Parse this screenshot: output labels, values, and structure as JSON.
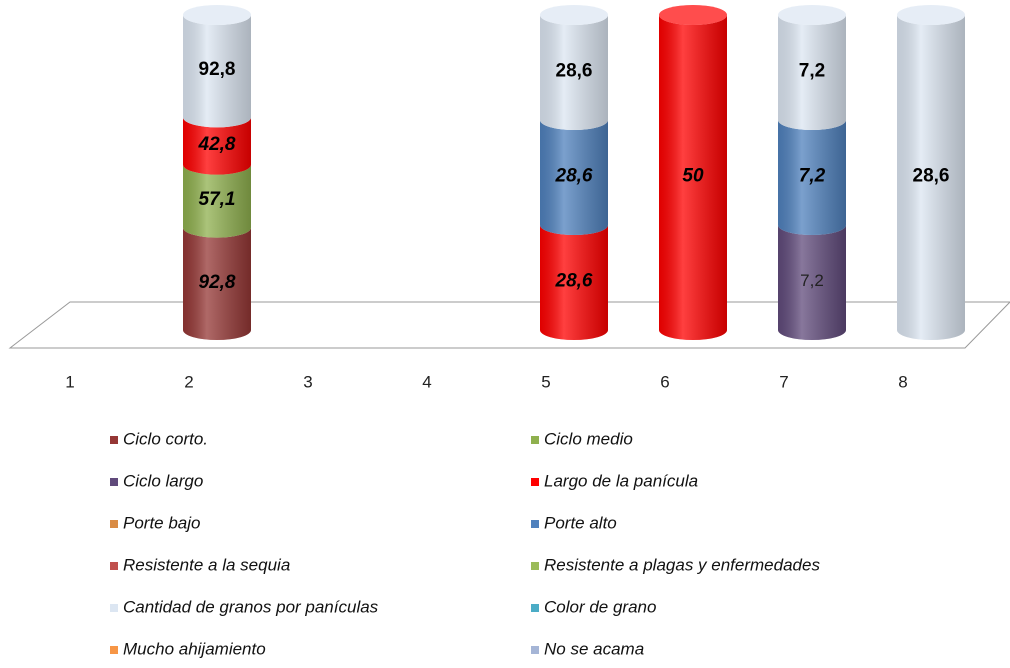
{
  "chart_data": {
    "type": "bar",
    "stacking": "percent",
    "categories": [
      "1",
      "2",
      "3",
      "4",
      "5",
      "6",
      "7",
      "8"
    ],
    "series": [
      {
        "name": "Ciclo corto.",
        "color": "#953735",
        "values": [
          null,
          92.8,
          null,
          null,
          null,
          null,
          null,
          null
        ],
        "value_labels": [
          null,
          "92,8",
          null,
          null,
          null,
          null,
          null,
          null
        ]
      },
      {
        "name": "Ciclo medio",
        "color": "#8fb04e",
        "values": [
          null,
          57.1,
          null,
          null,
          null,
          null,
          null,
          null
        ],
        "value_labels": [
          null,
          "57,1",
          null,
          null,
          null,
          null,
          null,
          null
        ]
      },
      {
        "name": "Ciclo largo",
        "color": "#604a7b",
        "values": [
          null,
          null,
          null,
          null,
          null,
          null,
          7.2,
          null
        ],
        "value_labels": [
          null,
          null,
          null,
          null,
          null,
          null,
          "7,2",
          null
        ]
      },
      {
        "name": "Largo de la panícula",
        "color": "#ff0000",
        "values": [
          null,
          42.8,
          null,
          null,
          28.6,
          50,
          null,
          null
        ],
        "value_labels": [
          null,
          "42,8",
          null,
          null,
          "28,6",
          "50",
          null,
          null
        ]
      },
      {
        "name": "Porte bajo",
        "color": "#d98b44",
        "values": [
          null,
          null,
          null,
          null,
          null,
          null,
          null,
          null
        ]
      },
      {
        "name": "Porte alto",
        "color": "#4f81bd",
        "values": [
          null,
          null,
          null,
          null,
          28.6,
          null,
          7.2,
          null
        ],
        "value_labels": [
          null,
          null,
          null,
          null,
          "28,6",
          null,
          "7,2",
          null
        ]
      },
      {
        "name": "Resistente a la sequia",
        "color": "#c0504d",
        "values": [
          null,
          null,
          null,
          null,
          null,
          null,
          null,
          null
        ]
      },
      {
        "name": "Resistente a plagas y enfermedades",
        "color": "#9bbb59",
        "values": [
          null,
          null,
          null,
          null,
          null,
          null,
          null,
          null
        ]
      },
      {
        "name": "Cantidad de granos por panículas",
        "color": "#dce6f2",
        "values": [
          null,
          92.8,
          null,
          null,
          28.6,
          null,
          7.2,
          28.6
        ],
        "value_labels": [
          null,
          "92,8",
          null,
          null,
          "28,6",
          null,
          "7,2",
          "28,6"
        ]
      },
      {
        "name": "Color de grano",
        "color": "#4bacc6",
        "values": [
          null,
          null,
          null,
          null,
          null,
          null,
          null,
          null
        ]
      },
      {
        "name": "Mucho ahijamiento",
        "color": "#f79646",
        "values": [
          null,
          null,
          null,
          null,
          null,
          null,
          null,
          null
        ]
      },
      {
        "name": "No se acama",
        "color": "#a5b5d6",
        "values": [
          null,
          null,
          null,
          null,
          null,
          null,
          null,
          null
        ]
      }
    ]
  }
}
